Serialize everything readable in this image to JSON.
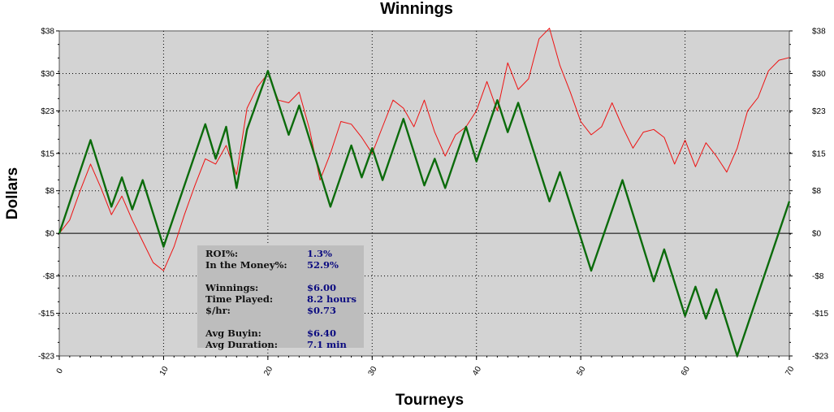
{
  "chart_data": {
    "type": "line",
    "title": "Winnings",
    "xlabel": "Tourneys",
    "ylabel": "Dollars",
    "xlim": [
      0,
      70
    ],
    "ylim": [
      -23,
      38
    ],
    "xticks": [
      0,
      10,
      20,
      30,
      40,
      50,
      60,
      70
    ],
    "xtick_labels": [
      "0",
      "10",
      "20",
      "30",
      "40",
      "50",
      "60",
      "70"
    ],
    "yticks": [
      38,
      30,
      23,
      15,
      8,
      0,
      -8,
      -15,
      -23
    ],
    "ytick_labels": [
      "$38",
      "$30",
      "$23",
      "$15",
      "$8",
      "$0",
      "-$8",
      "-$15",
      "-$23"
    ],
    "grid": true,
    "legend": "none",
    "background_color": "#d3d3d3",
    "series": [
      {
        "color": "#ee1111",
        "x": [
          0,
          1,
          2,
          3,
          4,
          5,
          6,
          7,
          8,
          9,
          10,
          11,
          12,
          13,
          14,
          15,
          16,
          17,
          18,
          19,
          20,
          21,
          22,
          23,
          24,
          25,
          26,
          27,
          28,
          29,
          30,
          31,
          32,
          33,
          34,
          35,
          36,
          37,
          38,
          39,
          40,
          41,
          42,
          43,
          44,
          45,
          46,
          47,
          48,
          49,
          50,
          51,
          52,
          53,
          54,
          55,
          56,
          57,
          58,
          59,
          60,
          61,
          62,
          63,
          64,
          65,
          66,
          67,
          68,
          69,
          70
        ],
        "y": [
          0,
          2.5,
          8,
          13,
          8.5,
          3.5,
          7,
          2.5,
          -1.5,
          -5.5,
          -7,
          -2.5,
          3.5,
          9,
          14,
          13,
          16.5,
          11,
          23.5,
          27.5,
          30,
          25,
          24.5,
          26.5,
          19.5,
          10,
          15,
          21,
          20.5,
          18,
          15,
          20,
          25,
          23.5,
          20,
          25,
          19,
          14.5,
          18.5,
          20,
          23,
          28.5,
          23,
          32,
          27,
          29,
          36.5,
          38.5,
          31.5,
          26.5,
          21,
          18.5,
          20,
          24.5,
          20,
          16,
          19,
          19.5,
          18,
          13,
          17.5,
          12.5,
          17,
          14.5,
          11.5,
          16,
          23,
          25.5,
          30.5,
          32.5,
          33
        ]
      },
      {
        "color": "#0b6b0b",
        "x": [
          0,
          3,
          5,
          6,
          7,
          8,
          10,
          14,
          15,
          16,
          17,
          18,
          20,
          22,
          23,
          26,
          28,
          29,
          30,
          31,
          33,
          35,
          36,
          37,
          39,
          40,
          42,
          43,
          44,
          47,
          48,
          51,
          54,
          57,
          58,
          60,
          61,
          62,
          63,
          65,
          70
        ],
        "y": [
          0,
          17.5,
          5,
          10.5,
          4.5,
          10,
          -2.5,
          20.5,
          14,
          20,
          8.5,
          19.5,
          30.5,
          18.5,
          24,
          5,
          16.5,
          10.5,
          16,
          10,
          21.5,
          9,
          14,
          8.5,
          20,
          13.5,
          25,
          19,
          24.5,
          6,
          11.5,
          -7,
          10,
          -9,
          -3,
          -15.5,
          -10,
          -16,
          -10.5,
          -23,
          6
        ]
      }
    ]
  },
  "stats_box": {
    "rows": [
      {
        "label": "ROI%:",
        "value": "1.3%"
      },
      {
        "label": "In the Money%:",
        "value": "52.9%"
      },
      {
        "label": "",
        "value": ""
      },
      {
        "label": "Winnings:",
        "value": "$6.00"
      },
      {
        "label": "Time Played:",
        "value": "8.2 hours"
      },
      {
        "label": "$/hr:",
        "value": "$0.73"
      },
      {
        "label": "",
        "value": ""
      },
      {
        "label": "Avg Buyin:",
        "value": "$6.40"
      },
      {
        "label": "Avg Duration:",
        "value": "7.1 min"
      }
    ]
  }
}
